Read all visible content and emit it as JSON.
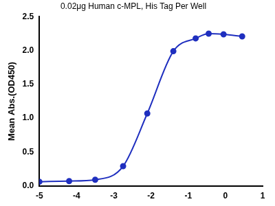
{
  "chart_data": {
    "type": "scatter",
    "title": "0.02μg Human c-MPL, His Tag Per Well",
    "y_label": "Mean Abs.(OD450)",
    "x": [
      -5.0,
      -4.2,
      -3.5,
      -2.75,
      -2.1,
      -1.4,
      -0.8,
      -0.45,
      -0.05,
      0.45
    ],
    "values": [
      0.06,
      0.07,
      0.09,
      0.29,
      1.07,
      1.99,
      2.18,
      2.25,
      2.24,
      2.21
    ],
    "color": "#1f2fbf",
    "marker": "circle",
    "line_style": "solid",
    "xlim": [
      -5,
      1
    ],
    "xticks": [
      -5,
      -4,
      -3,
      -2,
      -1,
      0,
      1
    ],
    "ylim": [
      0,
      2.5
    ],
    "yticks": [
      {
        "value": 0,
        "label": "0.0"
      },
      {
        "value": 0.5,
        "label": "0.5"
      },
      {
        "value": 1,
        "label": "1.0"
      },
      {
        "value": 1.5,
        "label": "1.5"
      },
      {
        "value": 2,
        "label": "2.0"
      },
      {
        "value": 2.5,
        "label": "2.5"
      }
    ],
    "grid": false
  }
}
